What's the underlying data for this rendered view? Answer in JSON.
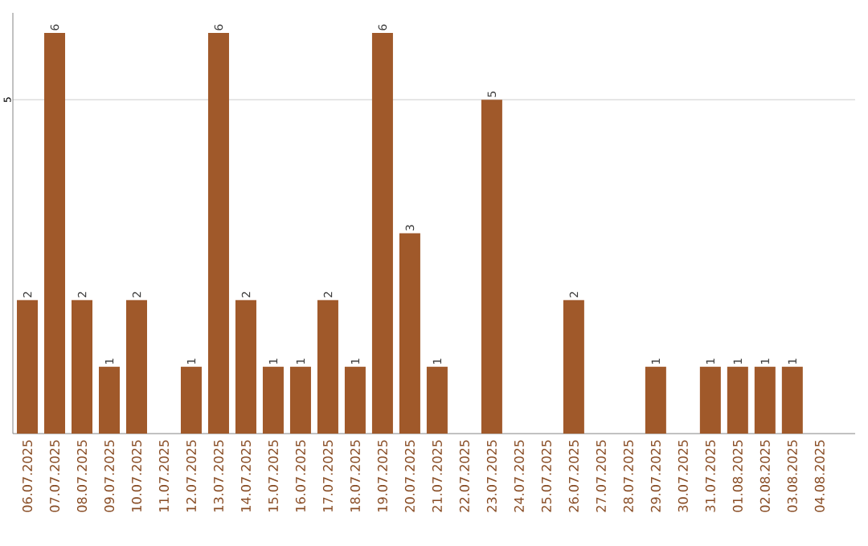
{
  "chart_data": {
    "type": "bar",
    "categories": [
      "06.07.2025",
      "07.07.2025",
      "08.07.2025",
      "09.07.2025",
      "10.07.2025",
      "11.07.2025",
      "12.07.2025",
      "13.07.2025",
      "14.07.2025",
      "15.07.2025",
      "16.07.2025",
      "17.07.2025",
      "18.07.2025",
      "19.07.2025",
      "20.07.2025",
      "21.07.2025",
      "22.07.2025",
      "23.07.2025",
      "24.07.2025",
      "25.07.2025",
      "26.07.2025",
      "27.07.2025",
      "28.07.2025",
      "29.07.2025",
      "30.07.2025",
      "31.07.2025",
      "01.08.2025",
      "02.08.2025",
      "03.08.2025",
      "04.08.2025"
    ],
    "values": [
      2,
      6,
      2,
      1,
      2,
      0,
      1,
      6,
      2,
      1,
      1,
      2,
      1,
      6,
      3,
      1,
      0,
      5,
      0,
      0,
      2,
      0,
      0,
      1,
      0,
      1,
      1,
      1,
      1,
      0
    ],
    "value_labels": [
      "2",
      "6",
      "2",
      "1",
      "2",
      null,
      "1",
      "6",
      "2",
      "1",
      "1",
      "2",
      "1",
      "6",
      "3",
      "1",
      null,
      "5",
      null,
      null,
      "2",
      null,
      null,
      "1",
      null,
      "1",
      "1",
      "1",
      "1",
      null
    ],
    "color": "#a0592a",
    "ylim": [
      0,
      6.3
    ],
    "yticks": [
      5
    ],
    "grid": "y"
  }
}
